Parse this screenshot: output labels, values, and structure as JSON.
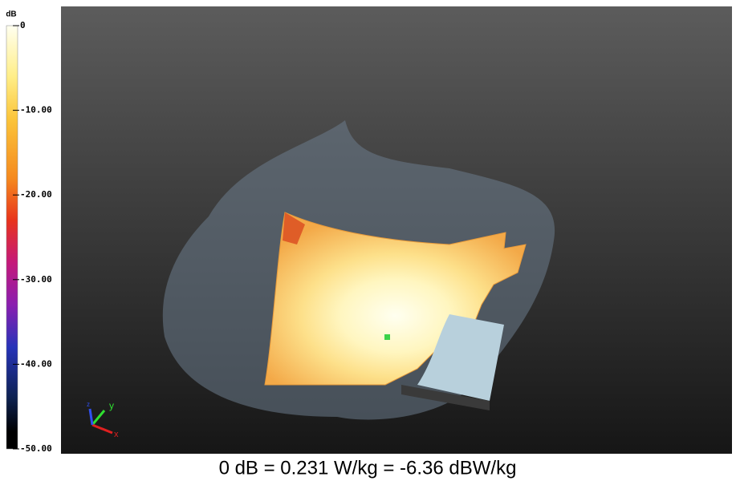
{
  "colorbar": {
    "unit": "dB",
    "range": [
      0,
      -50
    ],
    "ticks": [
      0,
      {
        "value": -10,
        "label": "-10.00"
      },
      {
        "value": -20,
        "label": "-20.00"
      },
      {
        "value": -30,
        "label": "-30.00"
      },
      {
        "value": -40,
        "label": "-40.00"
      },
      {
        "value": -50,
        "label": "-50.00"
      }
    ]
  },
  "axes": {
    "x": "x",
    "y": "y",
    "z": "z"
  },
  "caption": "0 dB = 0.231 W/kg = -6.36 dBW/kg"
}
